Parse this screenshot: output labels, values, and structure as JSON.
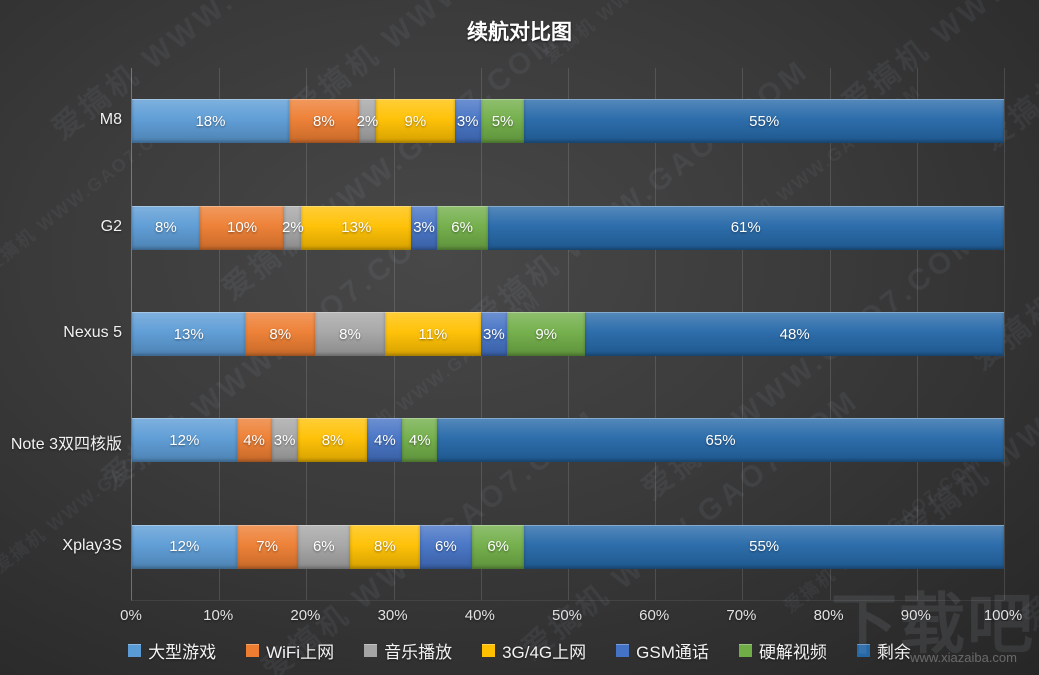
{
  "title": "续航对比图",
  "watermark": {
    "pattern_text": "爱搞机 WWW.GAO7.COM",
    "site_big": "下载吧",
    "site_small": "www.xiazaiba.com"
  },
  "chart_data": {
    "type": "bar",
    "subtype": "horizontal-100-stacked",
    "title": "续航对比图",
    "categories": [
      "M8",
      "G2",
      "Nexus 5",
      "Note 3双四核版",
      "Xplay3S"
    ],
    "series": [
      {
        "name": "大型游戏",
        "color": "#5B9BD5",
        "values": [
          18,
          8,
          13,
          12,
          12
        ]
      },
      {
        "name": "WiFi上网",
        "color": "#ED7D31",
        "values": [
          8,
          10,
          8,
          4,
          7
        ]
      },
      {
        "name": "音乐播放",
        "color": "#A5A5A5",
        "values": [
          2,
          2,
          8,
          3,
          6
        ]
      },
      {
        "name": "3G/4G上网",
        "color": "#FFC000",
        "values": [
          9,
          13,
          11,
          8,
          8
        ]
      },
      {
        "name": "GSM通话",
        "color": "#4472C4",
        "values": [
          3,
          3,
          3,
          4,
          6
        ]
      },
      {
        "name": "硬解视频",
        "color": "#70AD47",
        "values": [
          5,
          6,
          9,
          4,
          6
        ]
      },
      {
        "name": "剩余",
        "color": "#2568A8",
        "values": [
          55,
          61,
          48,
          65,
          55
        ]
      }
    ],
    "value_suffix": "%",
    "x_ticks": [
      "0%",
      "10%",
      "20%",
      "30%",
      "40%",
      "50%",
      "60%",
      "70%",
      "80%",
      "90%",
      "100%"
    ],
    "xlim": [
      0,
      100
    ],
    "grid": true,
    "legend_position": "bottom",
    "background": "dark"
  }
}
